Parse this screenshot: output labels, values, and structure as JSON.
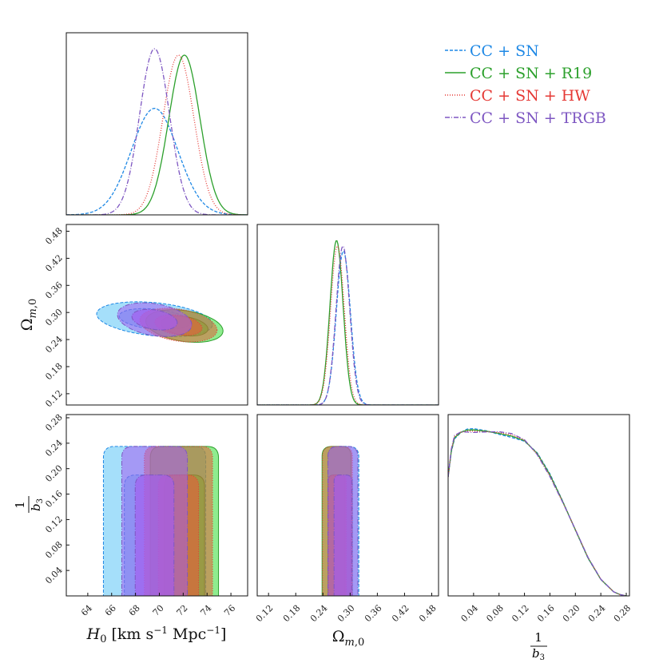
{
  "chart_data": {
    "type": "corner",
    "parameters": [
      {
        "key": "H0",
        "label": "H₀ [km s⁻¹ Mpc⁻¹]",
        "range": [
          62.2,
          77.4
        ],
        "ticks": [
          "64",
          "66",
          "68",
          "70",
          "72",
          "74",
          "76"
        ]
      },
      {
        "key": "Om",
        "label": "Ωₘ,₀",
        "range": [
          0.095,
          0.495
        ],
        "ticks": [
          "0.12",
          "0.18",
          "0.24",
          "0.30",
          "0.36",
          "0.42",
          "0.48"
        ]
      },
      {
        "key": "b3",
        "label": "1/b₃",
        "range": [
          0.0,
          0.285
        ],
        "ticks": [
          "0.04",
          "0.08",
          "0.12",
          "0.16",
          "0.20",
          "0.24",
          "0.28"
        ]
      }
    ],
    "series": [
      {
        "name": "CC + SN",
        "color": "#1e88e5",
        "fill": "#5bc4f5",
        "dash": "4,2",
        "H0": {
          "mean": 69.6,
          "sd": 1.95
        },
        "Om": {
          "mean": 0.285,
          "sd": 0.0155
        },
        "rho": -0.3
      },
      {
        "name": "CC + SN + R19",
        "color": "#2ca02c",
        "fill": "#33dd33",
        "dash": "",
        "H0": {
          "mean": 72.1,
          "sd": 1.3
        },
        "Om": {
          "mean": 0.27,
          "sd": 0.0145
        },
        "rho": -0.3
      },
      {
        "name": "CC + SN + HW",
        "color": "#e53935",
        "fill": "#e0623a",
        "dash": "1,2",
        "H0": {
          "mean": 71.6,
          "sd": 1.3
        },
        "Om": {
          "mean": 0.272,
          "sd": 0.015
        },
        "rho": -0.3
      },
      {
        "name": "CC + SN + TRGB",
        "color": "#7e57c2",
        "fill": "#a45ef0",
        "dash": "6,2,1,2",
        "H0": {
          "mean": 69.6,
          "sd": 1.25
        },
        "Om": {
          "mean": 0.284,
          "sd": 0.015
        },
        "rho": -0.3
      }
    ],
    "b3_marginal": {
      "x": [
        0.0,
        0.005,
        0.01,
        0.02,
        0.03,
        0.04,
        0.06,
        0.08,
        0.1,
        0.12,
        0.14,
        0.16,
        0.18,
        0.2,
        0.22,
        0.24,
        0.26,
        0.27,
        0.28
      ],
      "y": [
        0.72,
        0.88,
        0.96,
        0.99,
        1.0,
        1.0,
        0.995,
        0.985,
        0.97,
        0.94,
        0.86,
        0.73,
        0.57,
        0.4,
        0.23,
        0.1,
        0.025,
        0.008,
        0.0
      ]
    },
    "b3_upper_contour": [
      0.235,
      0.19
    ],
    "legend": "top-right",
    "grid": false
  }
}
